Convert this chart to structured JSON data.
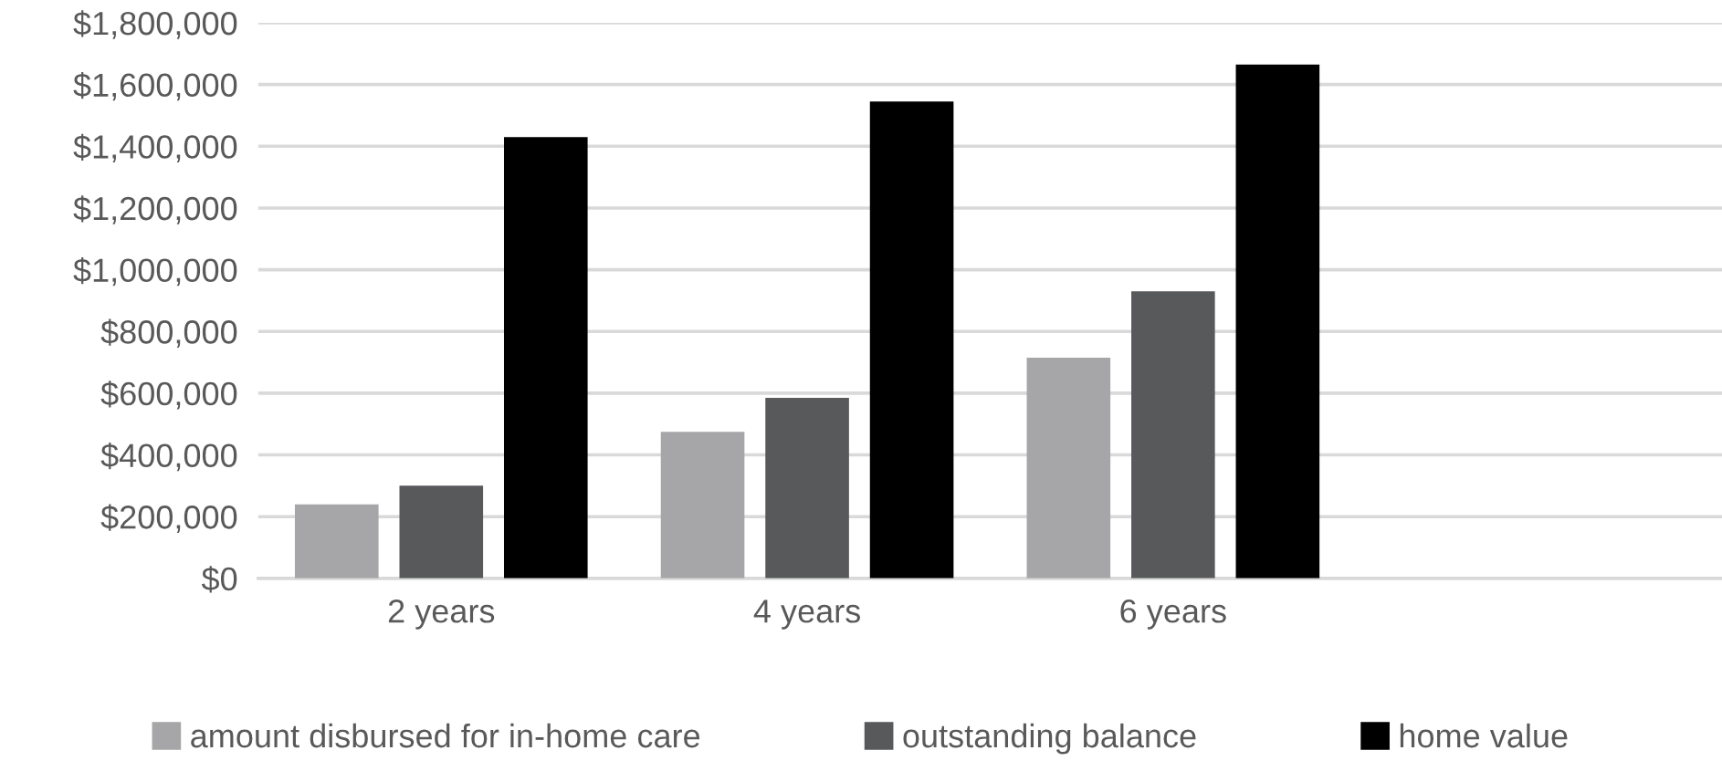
{
  "chart_data": {
    "type": "bar",
    "categories": [
      "2 years",
      "4 years",
      "6 years",
      null
    ],
    "series": [
      {
        "name": "amount disbursed for in-home care",
        "color": "#a6a6a8",
        "values": [
          240000,
          475000,
          715000,
          null
        ]
      },
      {
        "name": "outstanding balance",
        "color": "#58595b",
        "values": [
          300000,
          585000,
          930000,
          null
        ]
      },
      {
        "name": "home value",
        "color": "#000000",
        "values": [
          1430000,
          1545000,
          1665000,
          null
        ]
      }
    ],
    "ylim": [
      0,
      1800000
    ],
    "yticks": [
      {
        "value": 0,
        "label": "$0"
      },
      {
        "value": 200000,
        "label": "$200,000"
      },
      {
        "value": 400000,
        "label": "$400,000"
      },
      {
        "value": 600000,
        "label": "$600,000"
      },
      {
        "value": 800000,
        "label": "$800,000"
      },
      {
        "value": 1000000,
        "label": "$1,000,000"
      },
      {
        "value": 1200000,
        "label": "$1,200,000"
      },
      {
        "value": 1400000,
        "label": "$1,400,000"
      },
      {
        "value": 1600000,
        "label": "$1,600,000"
      },
      {
        "value": 1800000,
        "label": "$1,800,000"
      }
    ],
    "grid": "y",
    "legend": "bottom"
  }
}
